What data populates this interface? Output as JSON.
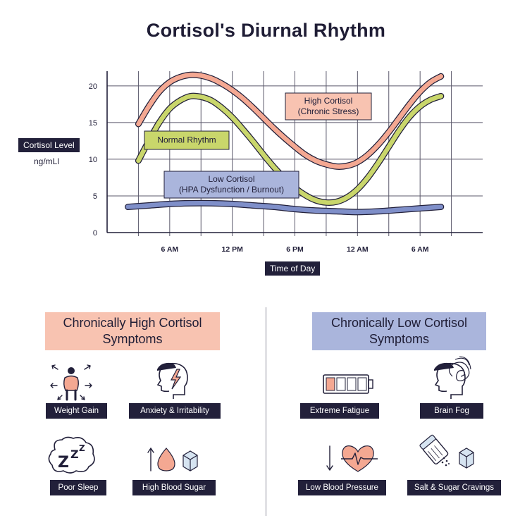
{
  "title": "Cortisol's Diurnal Rhythm",
  "chart_data": {
    "type": "line",
    "ylabel": "Cortisol Level",
    "ylabel_unit": "ng/mLl",
    "xlabel": "Time of Day",
    "x_ticks": [
      "6 AM",
      "12 PM",
      "6 PM",
      "12 AM",
      "6 AM"
    ],
    "y_ticks": [
      0,
      5,
      10,
      15,
      20
    ],
    "ylim": [
      0,
      22
    ],
    "grid": true,
    "colors": {
      "high": "#f4a892",
      "normal": "#c9d66b",
      "low": "#7f8fc9",
      "ink": "#22203a"
    },
    "series": [
      {
        "name": "High Cortisol\n(Chronic Stress)",
        "x": [
          3,
          4,
          5,
          6,
          7,
          8,
          9,
          10,
          11,
          12,
          13,
          14,
          15,
          16,
          17,
          18,
          19,
          20,
          21,
          22,
          23,
          24,
          25,
          26,
          27,
          28,
          29,
          30,
          31,
          32
        ],
        "values": [
          14.8,
          17.2,
          19.2,
          20.5,
          21.2,
          21.5,
          21.4,
          21.0,
          20.3,
          19.4,
          18.3,
          17.0,
          15.6,
          14.2,
          12.9,
          11.7,
          10.6,
          9.8,
          9.3,
          9.0,
          9.1,
          9.6,
          10.6,
          12.0,
          13.7,
          15.6,
          17.5,
          19.2,
          20.5,
          21.3
        ]
      },
      {
        "name": "Normal Rhythm",
        "x": [
          3,
          4,
          5,
          6,
          7,
          8,
          9,
          10,
          11,
          12,
          13,
          14,
          15,
          16,
          17,
          18,
          19,
          20,
          21,
          22,
          23,
          24,
          25,
          26,
          27,
          28,
          29,
          30,
          31,
          32
        ],
        "values": [
          9.8,
          12.5,
          15.0,
          16.9,
          18.0,
          18.6,
          18.5,
          18.0,
          17.0,
          15.7,
          14.1,
          12.4,
          10.6,
          8.9,
          7.4,
          6.1,
          5.1,
          4.4,
          4.1,
          4.2,
          4.8,
          5.9,
          7.5,
          9.5,
          11.7,
          13.9,
          15.8,
          17.2,
          18.1,
          18.6
        ]
      },
      {
        "name": "Low Cortisol\n(HPA Dysfunction / Burnout)",
        "x": [
          2,
          4,
          6,
          8,
          10,
          12,
          14,
          16,
          18,
          20,
          22,
          24,
          26,
          28,
          30,
          32
        ],
        "values": [
          3.5,
          3.7,
          3.9,
          4.0,
          4.0,
          3.9,
          3.7,
          3.5,
          3.2,
          3.0,
          2.9,
          2.8,
          2.9,
          3.1,
          3.3,
          3.5
        ]
      }
    ],
    "annotations": [
      {
        "series": 0,
        "lines": [
          "High Cortisol",
          "(Chronic Stress)"
        ]
      },
      {
        "series": 1,
        "lines": [
          "Normal Rhythm"
        ]
      },
      {
        "series": 2,
        "lines": [
          "Low Cortisol",
          "(HPA Dysfunction / Burnout)"
        ]
      }
    ]
  },
  "panels": {
    "high": {
      "title_line1": "Chronically High Cortisol",
      "title_line2": "Symptoms",
      "symptoms": [
        "Weight Gain",
        "Anxiety & Irritability",
        "Poor Sleep",
        "High Blood Sugar"
      ]
    },
    "low": {
      "title_line1": "Chronically Low Cortisol",
      "title_line2": "Symptoms",
      "symptoms": [
        "Extreme Fatigue",
        "Brain Fog",
        "Low Blood Pressure",
        "Salt & Sugar Cravings"
      ]
    }
  },
  "icons": {
    "high": [
      "person-weight-icon",
      "head-lightning-icon",
      "sleep-zzz-icon",
      "drop-sugar-cube-icon"
    ],
    "low": [
      "low-battery-icon",
      "head-fog-icon",
      "heart-pulse-icon",
      "salt-shaker-icon"
    ]
  }
}
